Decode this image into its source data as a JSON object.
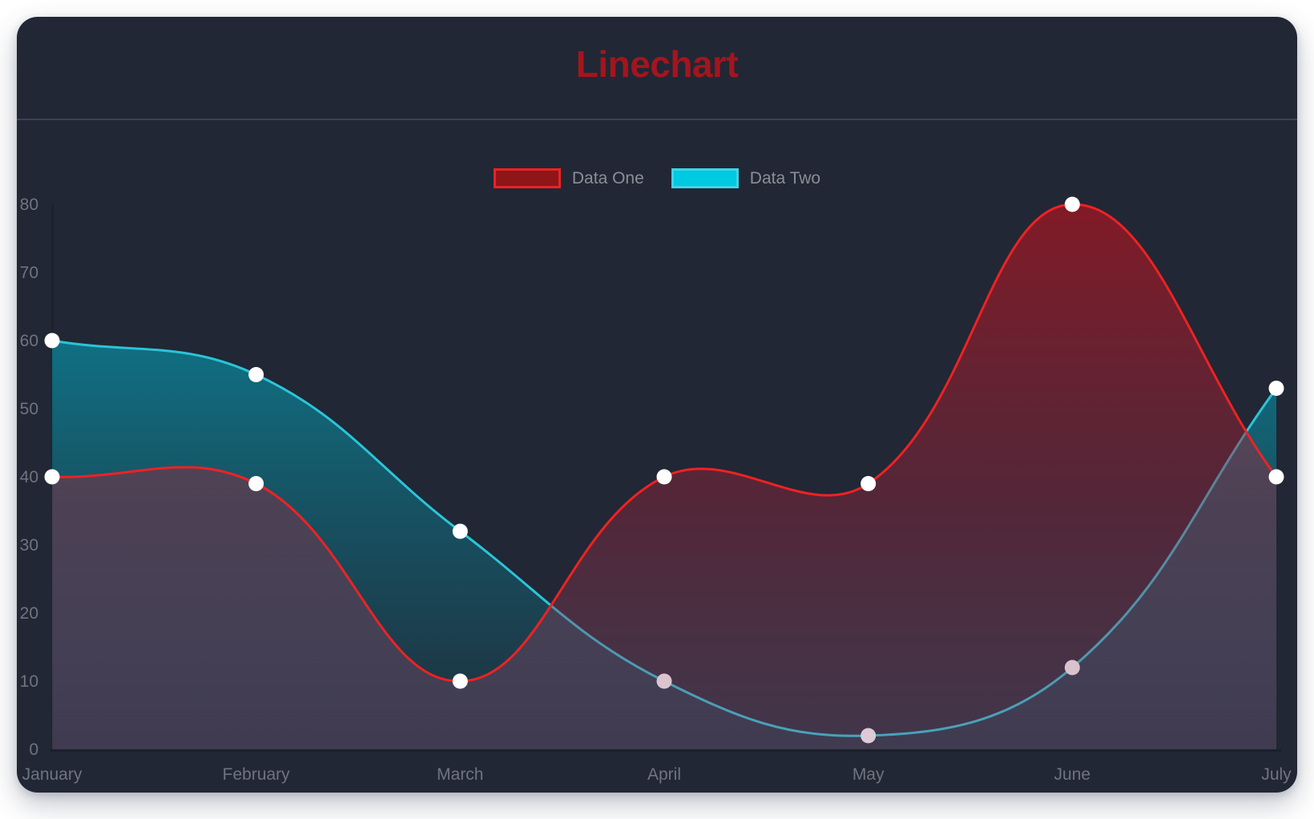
{
  "title": {
    "text": "Linechart",
    "color": "#a3151e"
  },
  "legend": {
    "items": [
      {
        "label": "Data One",
        "swatch_fill": "#8e1518",
        "swatch_border": "#ee2222"
      },
      {
        "label": "Data Two",
        "swatch_fill": "#00c9e2",
        "swatch_border": "#3fd4e8"
      }
    ]
  },
  "chart_data": {
    "type": "line",
    "title": "Linechart",
    "categories": [
      "January",
      "February",
      "March",
      "April",
      "May",
      "June",
      "July"
    ],
    "series": [
      {
        "name": "Data One",
        "values": [
          40,
          39,
          10,
          40,
          39,
          80,
          40
        ],
        "line_color": "#ee2222",
        "area_top": "rgba(206,16,28,0.56)",
        "area_mid": "rgba(158,38,62,0.40)",
        "area_bottom": "rgba(138,88,126,0.30)"
      },
      {
        "name": "Data Two",
        "values": [
          60,
          55,
          32,
          10,
          2,
          12,
          53
        ],
        "line_color": "#2bc4d8",
        "area_top": "rgba(0,174,198,0.72)",
        "area_mid": "rgba(0,174,198,0.32)",
        "area_bottom": "rgba(0,174,198,0.05)"
      }
    ],
    "y_ticks": [
      0,
      10,
      20,
      30,
      40,
      50,
      60,
      70,
      80
    ],
    "ylim": [
      0,
      80
    ],
    "grid": false,
    "legend_position": "top",
    "curve_tension": 0.4,
    "point_color": "#ffffff"
  },
  "axis": {
    "text_color": "#6f747f"
  },
  "canvas": {
    "page_background": "#ffffff",
    "card_background": "#212734",
    "divider_color": "#3a4257",
    "axis_line_color": "#1a1f2a"
  }
}
